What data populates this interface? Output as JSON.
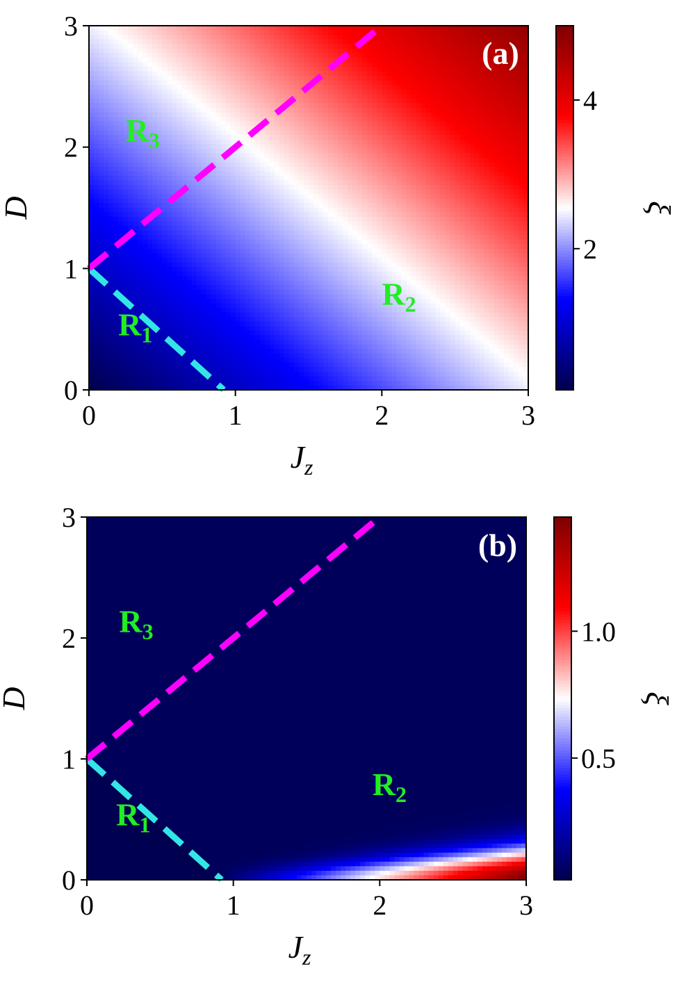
{
  "chart_data": [
    {
      "type": "heatmap",
      "panel_label": "(a)",
      "xlabel": "J",
      "xlabel_sub": "z",
      "ylabel": "D",
      "xlim": [
        0,
        3
      ],
      "ylim": [
        0,
        3
      ],
      "x_ticks": [
        "0",
        "1",
        "2",
        "3"
      ],
      "y_ticks": [
        "0",
        "1",
        "2",
        "3"
      ],
      "colorbar": {
        "label": "ξ",
        "range": [
          0.1,
          5.0
        ],
        "ticks": [
          {
            "value": 2,
            "label": "2"
          },
          {
            "value": 4,
            "label": "4"
          }
        ],
        "colormap": "seismic"
      },
      "field_estimate": "xi rises roughly linearly with Jz + D: about 0.1 at (0,0), about 2.5 along Jz + D = 3.1, about 5 at (3,3)",
      "grid": false,
      "lines": [
        {
          "name": "cyan-boundary",
          "color": "#33e5e5",
          "style": "dashed",
          "x": [
            0,
            0.92
          ],
          "y": [
            1,
            0
          ]
        },
        {
          "name": "magenta-boundary",
          "color": "#ff00ff",
          "style": "dashed",
          "x": [
            0,
            2.0
          ],
          "y": [
            1,
            3
          ]
        }
      ],
      "annotations": [
        {
          "text": "R",
          "sub": "3",
          "x": 0.25,
          "y": 2.05,
          "color": "#22ee22"
        },
        {
          "text": "R",
          "sub": "2",
          "x": 2.0,
          "y": 0.7,
          "color": "#22ee22"
        },
        {
          "text": "R",
          "sub": "1",
          "x": 0.2,
          "y": 0.45,
          "color": "#22ee22"
        }
      ]
    },
    {
      "type": "heatmap",
      "panel_label": "(b)",
      "xlabel": "J",
      "xlabel_sub": "z",
      "ylabel": "D",
      "xlim": [
        0,
        3
      ],
      "ylim": [
        0,
        3
      ],
      "x_ticks": [
        "0",
        "1",
        "2",
        "3"
      ],
      "y_ticks": [
        "0",
        "1",
        "2",
        "3"
      ],
      "colorbar": {
        "label": "ξ",
        "range": [
          0.02,
          1.45
        ],
        "ticks": [
          {
            "value": 0.5,
            "label": "0.5"
          },
          {
            "value": 1.0,
            "label": "1.0"
          }
        ],
        "colormap": "seismic"
      },
      "field_estimate": "xi near 0.05 over most of the plane; rises only near D = 0 for Jz > 0.92, reaching about 1.4 at Jz = 3",
      "grid": false,
      "lines": [
        {
          "name": "cyan-boundary",
          "color": "#33e5e5",
          "style": "dashed",
          "x": [
            0,
            0.92
          ],
          "y": [
            1,
            0
          ]
        },
        {
          "name": "magenta-boundary",
          "color": "#ff00ff",
          "style": "dashed",
          "x": [
            0,
            2.0
          ],
          "y": [
            1,
            3
          ]
        }
      ],
      "annotations": [
        {
          "text": "R",
          "sub": "3",
          "x": 0.22,
          "y": 2.05,
          "color": "#22ee22"
        },
        {
          "text": "R",
          "sub": "2",
          "x": 1.95,
          "y": 0.7,
          "color": "#22ee22"
        },
        {
          "text": "R",
          "sub": "1",
          "x": 0.2,
          "y": 0.45,
          "color": "#22ee22"
        }
      ]
    }
  ]
}
